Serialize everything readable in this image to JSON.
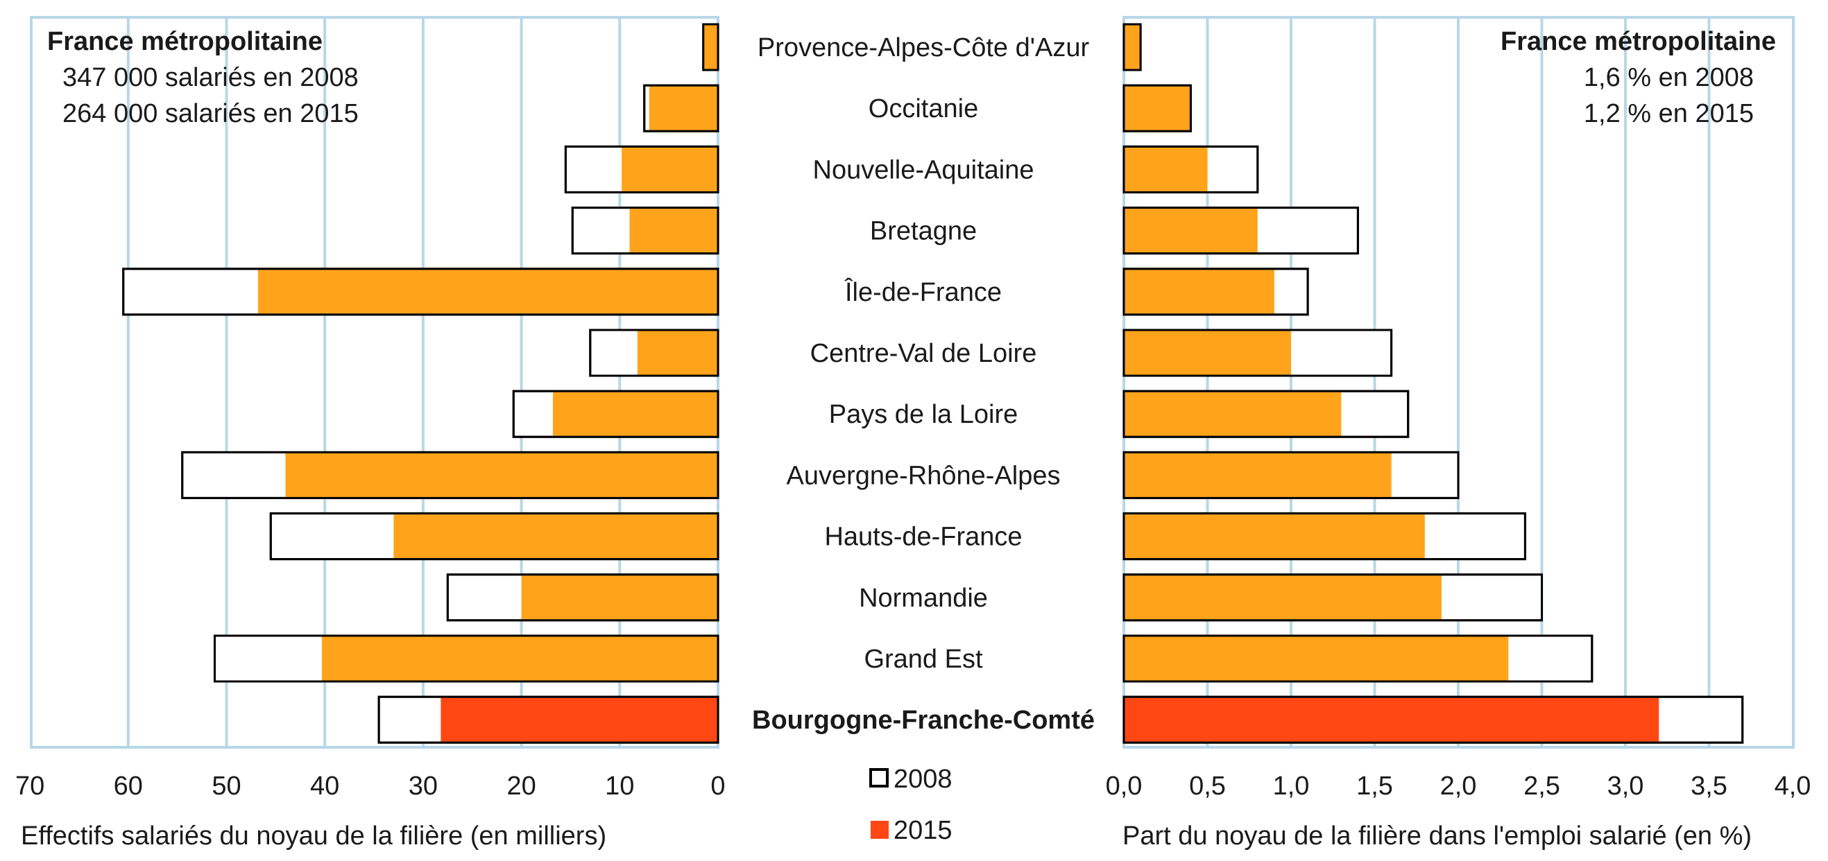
{
  "colors": {
    "frame": "#b7d7e8",
    "gridline": "#b7d7e8",
    "bar_2015": "#ffa31a",
    "bar_2015_highlight": "#ff4713",
    "bar_2008_fill": "#ffffff",
    "bar_2008_stroke": "#000000"
  },
  "chart_data": [
    {
      "type": "bar",
      "orientation": "horizontal",
      "direction": "right-to-left",
      "xlabel": "Effectifs salariés du noyau de la filière (en milliers)",
      "xlim": [
        0,
        70
      ],
      "xticks": [
        "70",
        "60",
        "50",
        "40",
        "30",
        "20",
        "10",
        "0"
      ],
      "grid": true,
      "annotation": {
        "title": "France métropolitaine",
        "line1": "347 000 salariés en 2008",
        "line2": "264 000 salariés en 2015"
      },
      "categories": [
        "Provence-Alpes-Côte d'Azur",
        "Occitanie",
        "Nouvelle-Aquitaine",
        "Bretagne",
        "Île-de-France",
        "Centre-Val de Loire",
        "Pays de la Loire",
        "Auvergne-Rhône-Alpes",
        "Hauts-de-France",
        "Normandie",
        "Grand Est",
        "Bourgogne-Franche-Comté"
      ],
      "highlight": "Bourgogne-Franche-Comté",
      "series": [
        {
          "name": "2008",
          "values": [
            1.5,
            7.5,
            15.5,
            14.8,
            60.5,
            13,
            20.8,
            54.5,
            45.5,
            27.5,
            51.2,
            34.5
          ]
        },
        {
          "name": "2015",
          "values": [
            1.5,
            7,
            9.8,
            9,
            46.8,
            8.2,
            16.8,
            44,
            33,
            20,
            40.3,
            28.2
          ]
        }
      ]
    },
    {
      "type": "bar",
      "orientation": "horizontal",
      "direction": "left-to-right",
      "xlabel": "Part du noyau de la filière dans l'emploi salarié (en %)",
      "xlim": [
        0,
        4
      ],
      "xticks": [
        "0,0",
        "0,5",
        "1,0",
        "1,5",
        "2,0",
        "2,5",
        "3,0",
        "3,5",
        "4,0"
      ],
      "grid": true,
      "annotation": {
        "title": "France métropolitaine",
        "line1": "1,6 % en 2008",
        "line2": "1,2 % en 2015"
      },
      "categories": [
        "Provence-Alpes-Côte d'Azur",
        "Occitanie",
        "Nouvelle-Aquitaine",
        "Bretagne",
        "Île-de-France",
        "Centre-Val de Loire",
        "Pays de la Loire",
        "Auvergne-Rhône-Alpes",
        "Hauts-de-France",
        "Normandie",
        "Grand Est",
        "Bourgogne-Franche-Comté"
      ],
      "highlight": "Bourgogne-Franche-Comté",
      "series": [
        {
          "name": "2008",
          "values": [
            0.1,
            0.4,
            0.8,
            1.4,
            1.1,
            1.6,
            1.7,
            2.0,
            2.4,
            2.5,
            2.8,
            3.7
          ]
        },
        {
          "name": "2015",
          "values": [
            0.1,
            0.4,
            0.5,
            0.8,
            0.9,
            1.0,
            1.3,
            1.6,
            1.8,
            1.9,
            2.3,
            3.2
          ]
        }
      ]
    }
  ],
  "legend": {
    "items": [
      {
        "label": "2008"
      },
      {
        "label": "2015"
      }
    ]
  }
}
